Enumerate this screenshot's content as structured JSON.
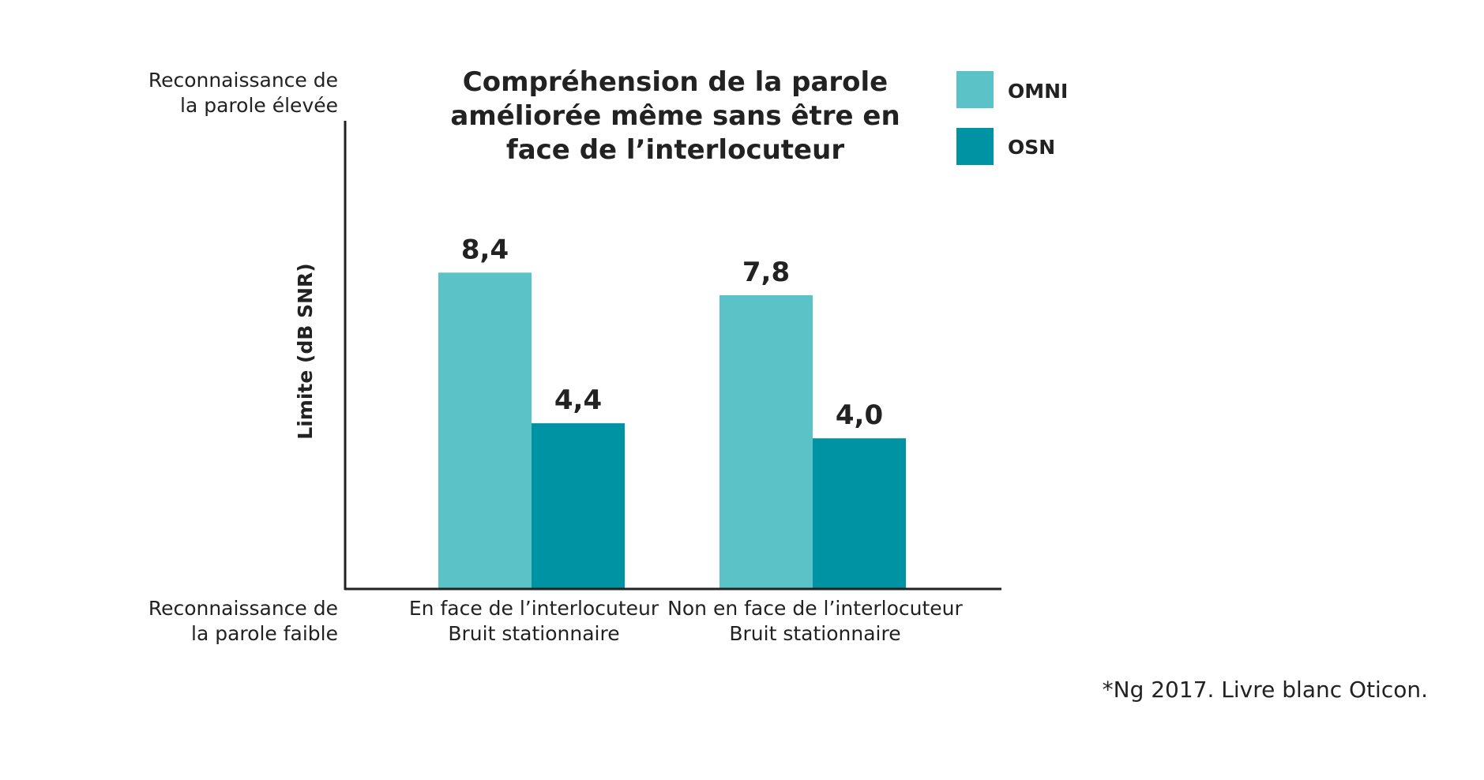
{
  "chart_data": {
    "type": "bar",
    "title_lines": [
      "Compréhension de la parole",
      "améliorée même sans être en",
      "face de l’interlocuteur"
    ],
    "ylabel": "Limite (dB SNR)",
    "y_top_label": [
      "Reconnaissance de",
      "la parole élevée"
    ],
    "y_bottom_label": [
      "Reconnaissance de",
      "la parole faible"
    ],
    "categories": [
      [
        "En face de l’interlocuteur",
        "Bruit stationnaire"
      ],
      [
        "Non en face de l’interlocuteur",
        "Bruit stationnaire"
      ]
    ],
    "value_scale": [
      0,
      10
    ],
    "series": [
      {
        "name": "OMNI",
        "color": "#5bc2c7",
        "values": [
          8.4,
          7.8
        ],
        "labels": [
          "8,4",
          "7,8"
        ]
      },
      {
        "name": "OSN",
        "color": "#0093a3",
        "values": [
          4.4,
          4.0
        ],
        "labels": [
          "4,4",
          "4,0"
        ]
      }
    ],
    "legend_position": "top-right",
    "grid": false
  },
  "footnote": "*Ng 2017. Livre blanc Oticon."
}
